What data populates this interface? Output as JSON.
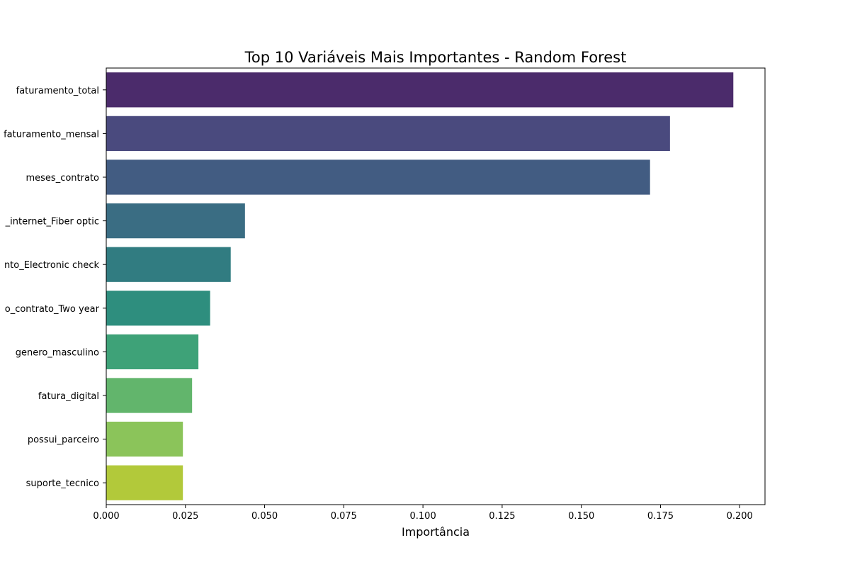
{
  "chart_data": {
    "type": "bar",
    "orientation": "horizontal",
    "title": "Top 10 Variáveis Mais Importantes - Random Forest",
    "xlabel": "Importância",
    "ylabel": "",
    "xlim": [
      0,
      0.208
    ],
    "xticks": [
      0.0,
      0.025,
      0.05,
      0.075,
      0.1,
      0.125,
      0.15,
      0.175,
      0.2
    ],
    "xtick_labels": [
      "0.000",
      "0.025",
      "0.050",
      "0.075",
      "0.100",
      "0.125",
      "0.150",
      "0.175",
      "0.200"
    ],
    "categories": [
      "faturamento_total",
      "faturamento_mensal",
      "meses_contrato",
      "_internet_Fiber optic",
      "nto_Electronic check",
      "o_contrato_Two year",
      "genero_masculino",
      "fatura_digital",
      "possui_parceiro",
      "suporte_tecnico"
    ],
    "values": [
      0.198,
      0.178,
      0.1717,
      0.0438,
      0.0393,
      0.0328,
      0.0291,
      0.0271,
      0.0242,
      0.0242
    ],
    "colors": [
      "#4b2b6b",
      "#4a4a7e",
      "#425c82",
      "#3a6d83",
      "#317c81",
      "#2e8e7e",
      "#3ea278",
      "#62b56c",
      "#8bc45a",
      "#b2c93a"
    ],
    "grid": false,
    "legend": "none"
  }
}
